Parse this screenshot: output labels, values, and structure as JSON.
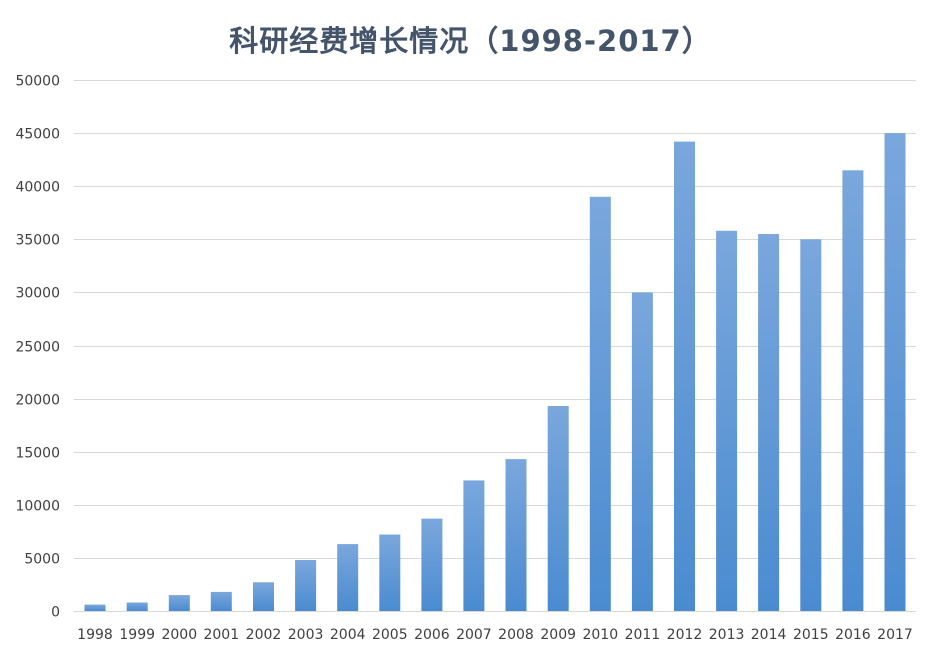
{
  "chart_data": {
    "type": "bar",
    "title": "科研经费增长情况（1998-2017）",
    "xlabel": "",
    "ylabel": "",
    "categories": [
      "1998",
      "1999",
      "2000",
      "2001",
      "2002",
      "2003",
      "2004",
      "2005",
      "2006",
      "2007",
      "2008",
      "2009",
      "2010",
      "2011",
      "2012",
      "2013",
      "2014",
      "2015",
      "2016",
      "2017"
    ],
    "values": [
      600,
      800,
      1500,
      1800,
      2700,
      4800,
      6300,
      7200,
      8700,
      12300,
      14300,
      19300,
      39000,
      30000,
      44200,
      35800,
      35500,
      35000,
      41500,
      45000
    ],
    "ylim": [
      0,
      50000
    ],
    "yticks": [
      0,
      5000,
      10000,
      15000,
      20000,
      25000,
      30000,
      35000,
      40000,
      45000,
      50000
    ],
    "grid": true,
    "legend": "none",
    "colors": {
      "bar_top": "#7aa7dc",
      "bar_bottom": "#4a8bd0",
      "title": "#44546a",
      "grid": "#d9d9d9",
      "tick_text": "#404040"
    }
  }
}
